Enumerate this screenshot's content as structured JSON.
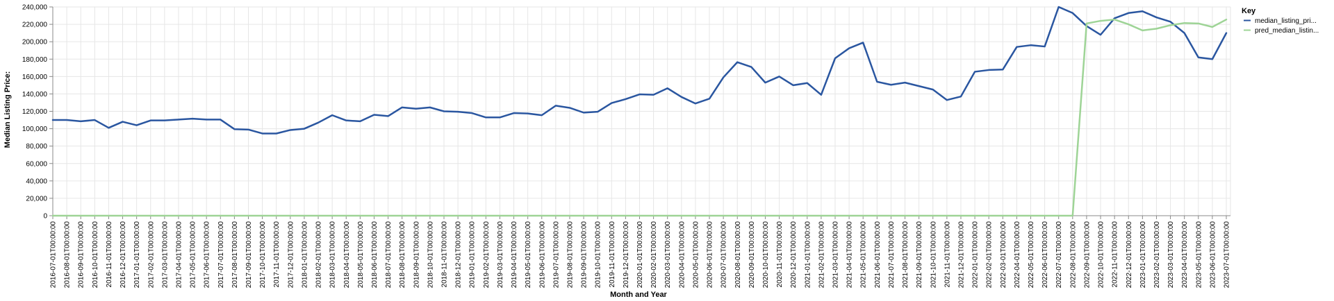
{
  "chart_data": {
    "type": "line",
    "xlabel": "Month and Year",
    "ylabel": "Median Listing Price:",
    "ylim": [
      0,
      240000
    ],
    "y_ticks": [
      "0",
      "20,000",
      "40,000",
      "60,000",
      "80,000",
      "100,000",
      "120,000",
      "140,000",
      "160,000",
      "180,000",
      "200,000",
      "220,000",
      "240,000"
    ],
    "grid": true,
    "legend": {
      "title": "Key",
      "position": "right",
      "entries": [
        "median_listing_pri...",
        "pred_median_listin..."
      ]
    },
    "x": [
      "2016-07-01T00:00:00",
      "2016-08-01T00:00:00",
      "2016-09-01T00:00:00",
      "2016-10-01T00:00:00",
      "2016-11-01T00:00:00",
      "2016-12-01T00:00:00",
      "2017-01-01T00:00:00",
      "2017-02-01T00:00:00",
      "2017-03-01T00:00:00",
      "2017-04-01T00:00:00",
      "2017-05-01T00:00:00",
      "2017-06-01T00:00:00",
      "2017-07-01T00:00:00",
      "2017-08-01T00:00:00",
      "2017-09-01T00:00:00",
      "2017-10-01T00:00:00",
      "2017-11-01T00:00:00",
      "2017-12-01T00:00:00",
      "2018-01-01T00:00:00",
      "2018-02-01T00:00:00",
      "2018-03-01T00:00:00",
      "2018-04-01T00:00:00",
      "2018-05-01T00:00:00",
      "2018-06-01T00:00:00",
      "2018-07-01T00:00:00",
      "2018-08-01T00:00:00",
      "2018-09-01T00:00:00",
      "2018-10-01T00:00:00",
      "2018-11-01T00:00:00",
      "2018-12-01T00:00:00",
      "2019-01-01T00:00:00",
      "2019-02-01T00:00:00",
      "2019-03-01T00:00:00",
      "2019-04-01T00:00:00",
      "2019-05-01T00:00:00",
      "2019-06-01T00:00:00",
      "2019-07-01T00:00:00",
      "2019-08-01T00:00:00",
      "2019-09-01T00:00:00",
      "2019-10-01T00:00:00",
      "2019-11-01T00:00:00",
      "2019-12-01T00:00:00",
      "2020-01-01T00:00:00",
      "2020-02-01T00:00:00",
      "2020-03-01T00:00:00",
      "2020-04-01T00:00:00",
      "2020-05-01T00:00:00",
      "2020-06-01T00:00:00",
      "2020-07-01T00:00:00",
      "2020-08-01T00:00:00",
      "2020-09-01T00:00:00",
      "2020-10-01T00:00:00",
      "2020-11-01T00:00:00",
      "2020-12-01T00:00:00",
      "2021-01-01T00:00:00",
      "2021-02-01T00:00:00",
      "2021-03-01T00:00:00",
      "2021-04-01T00:00:00",
      "2021-05-01T00:00:00",
      "2021-06-01T00:00:00",
      "2021-07-01T00:00:00",
      "2021-08-01T00:00:00",
      "2021-09-01T00:00:00",
      "2021-10-01T00:00:00",
      "2021-11-01T00:00:00",
      "2021-12-01T00:00:00",
      "2022-01-01T00:00:00",
      "2022-02-01T00:00:00",
      "2022-03-01T00:00:00",
      "2022-04-01T00:00:00",
      "2022-05-01T00:00:00",
      "2022-06-01T00:00:00",
      "2022-07-01T00:00:00",
      "2022-08-01T00:00:00",
      "2022-09-01T00:00:00",
      "2022-10-01T00:00:00",
      "2022-11-01T00:00:00",
      "2022-12-01T00:00:00",
      "2023-01-01T00:00:00",
      "2023-02-01T00:00:00",
      "2023-03-01T00:00:00",
      "2023-04-01T00:00:00",
      "2023-05-01T00:00:00",
      "2023-06-01T00:00:00",
      "2023-07-01T00:00:00"
    ],
    "series": [
      {
        "name": "median_listing_pri...",
        "color": "#2a56a0",
        "values": [
          110000,
          110000,
          108500,
          110000,
          101000,
          108000,
          104000,
          109500,
          109500,
          110500,
          111500,
          110500,
          110500,
          99500,
          99000,
          94500,
          94500,
          98500,
          100000,
          107000,
          115500,
          109500,
          108500,
          116000,
          114500,
          124500,
          123000,
          124500,
          120000,
          119500,
          118000,
          113000,
          113000,
          118000,
          117500,
          115500,
          126500,
          124000,
          118500,
          119500,
          129500,
          134000,
          139500,
          139000,
          146500,
          136500,
          129000,
          134500,
          159000,
          176500,
          171000,
          153000,
          160000,
          150000,
          152500,
          139000,
          181000,
          192500,
          199000,
          154000,
          150500,
          153000,
          149000,
          145000,
          133000,
          137000,
          165500,
          167500,
          168000,
          194000,
          196000,
          194500,
          240000,
          233000,
          218000,
          208000,
          227000,
          233000,
          235000,
          228000,
          223000,
          210000,
          182000,
          180000,
          210000
        ]
      },
      {
        "name": "pred_median_listin...",
        "color": "#9ed496",
        "values": [
          0,
          0,
          0,
          0,
          0,
          0,
          0,
          0,
          0,
          0,
          0,
          0,
          0,
          0,
          0,
          0,
          0,
          0,
          0,
          0,
          0,
          0,
          0,
          0,
          0,
          0,
          0,
          0,
          0,
          0,
          0,
          0,
          0,
          0,
          0,
          0,
          0,
          0,
          0,
          0,
          0,
          0,
          0,
          0,
          0,
          0,
          0,
          0,
          0,
          0,
          0,
          0,
          0,
          0,
          0,
          0,
          0,
          0,
          0,
          0,
          0,
          0,
          0,
          0,
          0,
          0,
          0,
          0,
          0,
          0,
          0,
          0,
          0,
          0,
          221000,
          224000,
          225500,
          220000,
          213000,
          215000,
          219000,
          221500,
          221000,
          217000,
          225500
        ]
      }
    ]
  }
}
